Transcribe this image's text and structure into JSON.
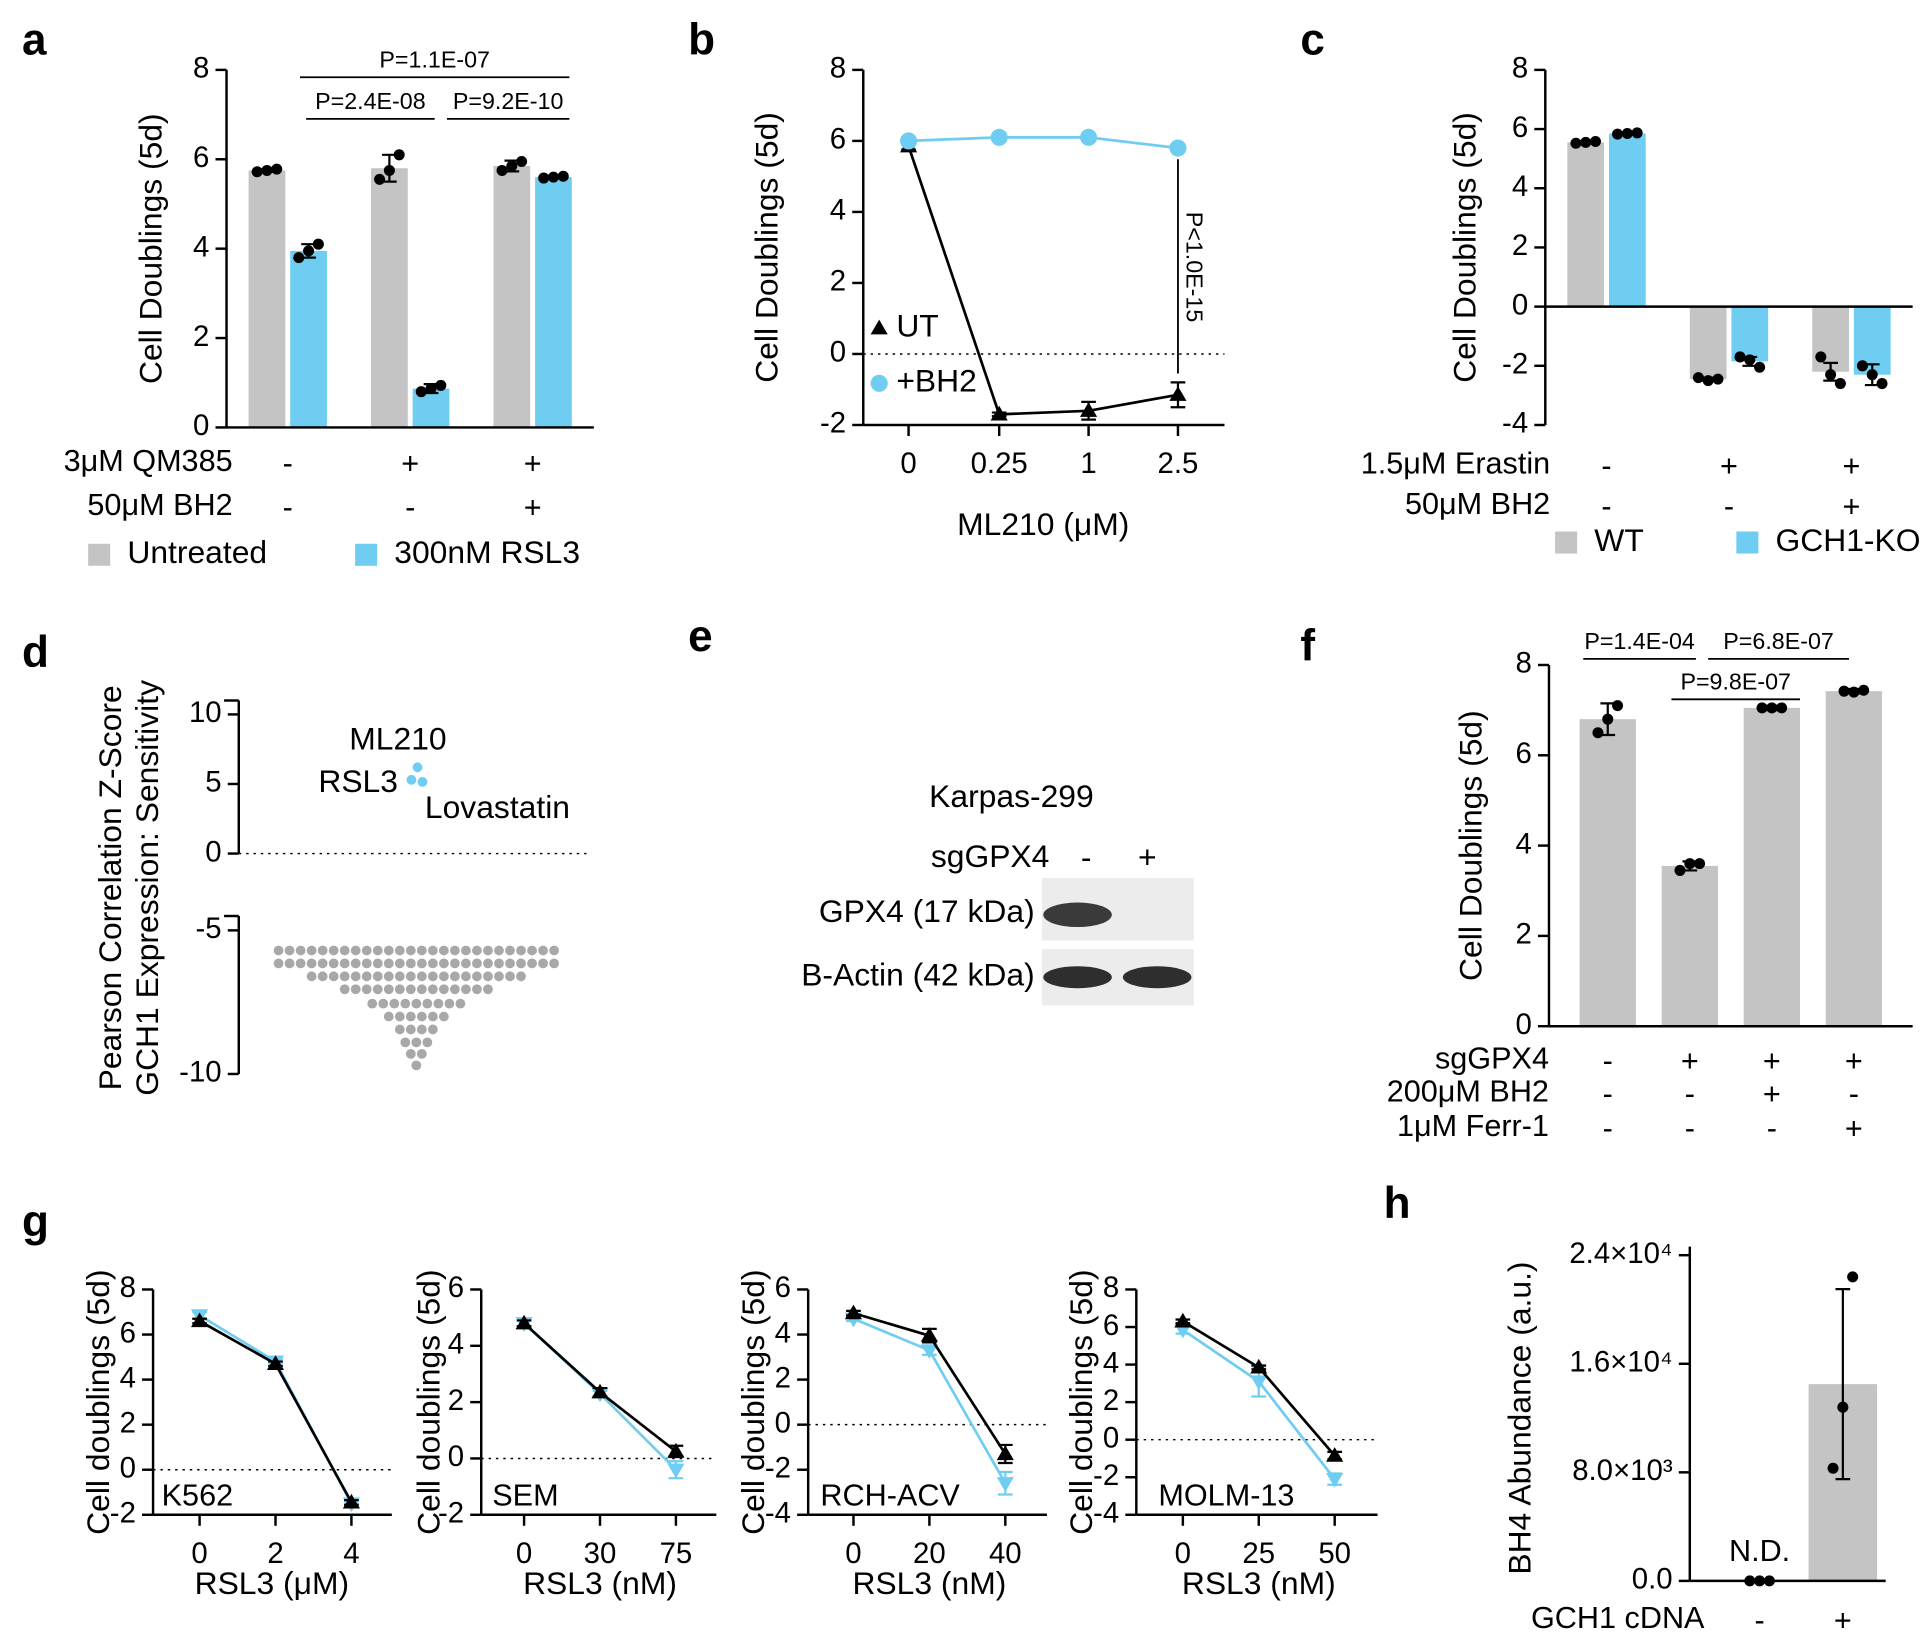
{
  "chart_data": [
    {
      "panel": "a",
      "type": "bar",
      "ylabel": "Cell Doublings (5d)",
      "ylim": [
        0,
        8
      ],
      "yticks": [
        0,
        2,
        4,
        6,
        8
      ],
      "series": [
        {
          "name": "Untreated",
          "color": "#c4c4c4",
          "values": [
            5.75,
            5.8,
            5.85
          ],
          "errors": [
            0.03,
            0.3,
            0.12
          ],
          "points": [
            [
              5.72,
              5.75,
              5.78
            ],
            [
              5.55,
              5.75,
              6.1
            ],
            [
              5.75,
              5.85,
              5.95
            ]
          ]
        },
        {
          "name": "300nM RSL3",
          "color": "#6fcdf2",
          "values": [
            3.95,
            0.87,
            5.6
          ],
          "errors": [
            0.15,
            0.1,
            0.03
          ],
          "points": [
            [
              3.8,
              3.95,
              4.1
            ],
            [
              0.8,
              0.87,
              0.94
            ],
            [
              5.58,
              5.6,
              5.62
            ]
          ]
        }
      ],
      "conditions": [
        {
          "label": "3μM QM385",
          "values": [
            "-",
            "+",
            "+"
          ]
        },
        {
          "label": "50μM BH2",
          "values": [
            "-",
            "-",
            "+"
          ]
        }
      ],
      "annotations": [
        "P=1.1E-07",
        "P=2.4E-08",
        "P=9.2E-10"
      ]
    },
    {
      "panel": "b",
      "type": "line",
      "ylabel": "Cell Doublings (5d)",
      "xlabel": "ML210 (μM)",
      "categories": [
        "0",
        "0.25",
        "1",
        "2.5"
      ],
      "ylim": [
        -2,
        8
      ],
      "yticks": [
        -2,
        0,
        2,
        4,
        6,
        8
      ],
      "series": [
        {
          "name": "UT",
          "color": "#000000",
          "marker": "triangle",
          "values": [
            5.85,
            -1.7,
            -1.6,
            -1.15
          ],
          "errors": [
            0.1,
            0.05,
            0.25,
            0.35
          ]
        },
        {
          "name": "+BH2",
          "color": "#6fcdf2",
          "marker": "circle",
          "values": [
            6.0,
            6.1,
            6.1,
            5.8
          ]
        }
      ],
      "annotations": [
        "P<1.0E-15"
      ]
    },
    {
      "panel": "c",
      "type": "bar",
      "ylabel": "Cell Doublings (5d)",
      "ylim": [
        -4,
        8
      ],
      "yticks": [
        -4,
        -2,
        0,
        2,
        4,
        6,
        8
      ],
      "series": [
        {
          "name": "WT",
          "color": "#c4c4c4",
          "values": [
            5.55,
            -2.45,
            -2.2
          ],
          "errors": [
            0.03,
            0.05,
            0.3
          ],
          "points": [
            [
              5.52,
              5.55,
              5.58
            ],
            [
              -2.4,
              -2.5,
              -2.45
            ],
            [
              -1.7,
              -2.3,
              -2.6
            ]
          ]
        },
        {
          "name": "GCH1-KO",
          "color": "#6fcdf2",
          "values": [
            5.85,
            -1.85,
            -2.3
          ],
          "errors": [
            0.03,
            0.15,
            0.35
          ],
          "points": [
            [
              5.83,
              5.85,
              5.87
            ],
            [
              -1.7,
              -1.8,
              -2.05
            ],
            [
              -2.0,
              -2.3,
              -2.6
            ]
          ]
        }
      ],
      "conditions": [
        {
          "label": "1.5μM Erastin",
          "values": [
            "-",
            "+",
            "+"
          ]
        },
        {
          "label": "50μM BH2",
          "values": [
            "-",
            "-",
            "+"
          ]
        }
      ]
    },
    {
      "panel": "d",
      "type": "swarm",
      "ylabel": [
        "Pearson Correlation Z-Score",
        "GCH1 Expression: Sensitivity"
      ],
      "segments": [
        {
          "ylim": [
            -10,
            -4.5
          ],
          "yticks": [
            -10,
            -5
          ]
        },
        {
          "ylim": [
            0,
            11
          ],
          "yticks": [
            0,
            5,
            10
          ]
        }
      ],
      "color": "#a8a8a8",
      "values": [
        -5.7,
        -5.7,
        -5.7,
        -5.7,
        -5.7,
        -5.7,
        -5.7,
        -5.7,
        -5.7,
        -5.7,
        -5.7,
        -5.7,
        -5.7,
        -5.7,
        -5.7,
        -5.7,
        -5.7,
        -5.7,
        -5.7,
        -5.7,
        -5.7,
        -5.7,
        -5.7,
        -5.7,
        -5.7,
        -5.7,
        -6.15,
        -6.15,
        -6.15,
        -6.15,
        -6.15,
        -6.15,
        -6.15,
        -6.15,
        -6.15,
        -6.15,
        -6.15,
        -6.15,
        -6.15,
        -6.15,
        -6.15,
        -6.15,
        -6.15,
        -6.15,
        -6.15,
        -6.15,
        -6.15,
        -6.15,
        -6.15,
        -6.15,
        -6.15,
        -6.15,
        -6.6,
        -6.6,
        -6.6,
        -6.6,
        -6.6,
        -6.6,
        -6.6,
        -6.6,
        -6.6,
        -6.6,
        -6.6,
        -6.6,
        -6.6,
        -6.6,
        -6.6,
        -6.6,
        -6.6,
        -6.6,
        -6.6,
        -6.6,
        -7.05,
        -7.05,
        -7.05,
        -7.05,
        -7.05,
        -7.05,
        -7.05,
        -7.05,
        -7.05,
        -7.05,
        -7.05,
        -7.05,
        -7.05,
        -7.05,
        -7.55,
        -7.55,
        -7.55,
        -7.55,
        -7.55,
        -7.55,
        -7.55,
        -7.55,
        -7.55,
        -8.0,
        -8.0,
        -8.0,
        -8.0,
        -8.0,
        -8.0,
        -8.45,
        -8.45,
        -8.45,
        -8.45,
        -8.9,
        -8.9,
        -8.9,
        -9.3,
        -9.3,
        -9.7
      ],
      "highlight_color": "#6fcdf2",
      "highlights": [
        {
          "name": "ML210",
          "value": 6.2
        },
        {
          "name": "RSL3",
          "value": 5.3
        },
        {
          "name": "Lovastatin",
          "value": 5.15
        }
      ]
    },
    {
      "panel": "f",
      "type": "bar",
      "ylabel": "Cell Doublings (5d)",
      "ylim": [
        0,
        8
      ],
      "yticks": [
        0,
        2,
        4,
        6,
        8
      ],
      "color": "#c4c4c4",
      "values": [
        6.8,
        3.55,
        7.05,
        7.42
      ],
      "errors": [
        0.35,
        0.1,
        0.05,
        0.05
      ],
      "points": [
        [
          6.5,
          6.8,
          7.1
        ],
        [
          3.45,
          3.6,
          3.6
        ],
        [
          7.05,
          7.05,
          7.05
        ],
        [
          7.42,
          7.4,
          7.44
        ]
      ],
      "conditions": [
        {
          "label": "sgGPX4",
          "values": [
            "-",
            "+",
            "+",
            "+"
          ]
        },
        {
          "label": "200μM BH2",
          "values": [
            "-",
            "-",
            "+",
            "-"
          ]
        },
        {
          "label": "1μM Ferr-1",
          "values": [
            "-",
            "-",
            "-",
            "+"
          ]
        }
      ],
      "annotations": [
        "P=1.4E-04",
        "P=9.8E-07",
        "P=6.8E-07"
      ]
    },
    {
      "panel": "g",
      "type": "line",
      "ylabel": "Cell doublings (5d)",
      "xlabel": "RSL3 (μM)",
      "categories": [
        "0",
        "2",
        "4"
      ],
      "ylim": [
        -2,
        8
      ],
      "yticks": [
        -2,
        0,
        2,
        4,
        6,
        8
      ],
      "series": [
        {
          "color": "#6fcdf2",
          "marker": "triangle-down",
          "values": [
            6.85,
            4.8,
            -1.5
          ],
          "errors": [
            0.15,
            0.1,
            0.1
          ]
        },
        {
          "color": "#000000",
          "marker": "triangle",
          "values": [
            6.6,
            4.7,
            -1.45
          ],
          "errors": [
            0.1,
            0.1,
            0.1
          ]
        }
      ],
      "annotations": [
        "K562"
      ]
    },
    {
      "type": "line",
      "ylabel": "Cell doublings (5d)",
      "xlabel": "RSL3 (nM)",
      "categories": [
        "0",
        "30",
        "75"
      ],
      "ylim": [
        -2,
        6
      ],
      "yticks": [
        -2,
        0,
        2,
        4,
        6
      ],
      "series": [
        {
          "color": "#6fcdf2",
          "marker": "triangle-down",
          "values": [
            4.8,
            2.3,
            -0.4
          ],
          "errors": [
            0.1,
            0.1,
            0.3
          ]
        },
        {
          "color": "#000000",
          "marker": "triangle",
          "values": [
            4.8,
            2.35,
            0.25
          ],
          "errors": [
            0.1,
            0.15,
            0.2
          ]
        }
      ],
      "annotations": [
        "SEM"
      ]
    },
    {
      "type": "line",
      "ylabel": "Cell doublings (5d)",
      "xlabel": "RSL3 (nM)",
      "categories": [
        "0",
        "20",
        "40"
      ],
      "ylim": [
        -4,
        6
      ],
      "yticks": [
        -4,
        -2,
        0,
        2,
        4,
        6
      ],
      "series": [
        {
          "color": "#6fcdf2",
          "marker": "triangle-down",
          "values": [
            4.7,
            3.3,
            -2.6
          ],
          "errors": [
            0.1,
            0.2,
            0.5
          ]
        },
        {
          "color": "#000000",
          "marker": "triangle",
          "values": [
            4.95,
            3.95,
            -1.3
          ],
          "errors": [
            0.1,
            0.3,
            0.4
          ]
        }
      ],
      "annotations": [
        "RCH-ACV"
      ]
    },
    {
      "type": "line",
      "ylabel": "Cell doublings (5d)",
      "xlabel": "RSL3 (nM)",
      "categories": [
        "0",
        "25",
        "50"
      ],
      "ylim": [
        -4,
        8
      ],
      "yticks": [
        -4,
        -2,
        0,
        2,
        4,
        6,
        8
      ],
      "series": [
        {
          "color": "#6fcdf2",
          "marker": "triangle-down",
          "values": [
            5.85,
            3.1,
            -2.1
          ],
          "errors": [
            0.2,
            0.8,
            0.3
          ]
        },
        {
          "color": "#000000",
          "marker": "triangle",
          "values": [
            6.3,
            3.85,
            -0.85
          ],
          "errors": [
            0.1,
            0.1,
            0.2
          ]
        }
      ],
      "annotations": [
        "MOLM-13"
      ]
    },
    {
      "panel": "h",
      "type": "bar",
      "ylabel": "BH4 Abundance (a.u.)",
      "ylim": [
        0,
        24000
      ],
      "yticks": [
        {
          "value": 0,
          "label": "0.0"
        },
        {
          "value": 8000,
          "label": "8.0×10³"
        },
        {
          "value": 16000,
          "label": "1.6×10⁴"
        },
        {
          "value": 24000,
          "label": "2.4×10⁴"
        }
      ],
      "color": "#c4c4c4",
      "values": [
        null,
        14500
      ],
      "errors": [
        null,
        7000
      ],
      "points": [
        [
          0,
          0,
          0
        ],
        [
          8300,
          12800,
          22400
        ]
      ],
      "conditions": [
        {
          "label": "GCH1 cDNA",
          "values": [
            "-",
            "+"
          ]
        }
      ],
      "annotations": [
        "N.D."
      ]
    }
  ],
  "blot": {
    "panel": "e",
    "cell_line": "Karpas-299",
    "header": "sgGPX4",
    "lanes": [
      "-",
      "+"
    ],
    "rows": [
      "GPX4 (17 kDa)",
      "B-Actin (42 kDa)"
    ]
  }
}
